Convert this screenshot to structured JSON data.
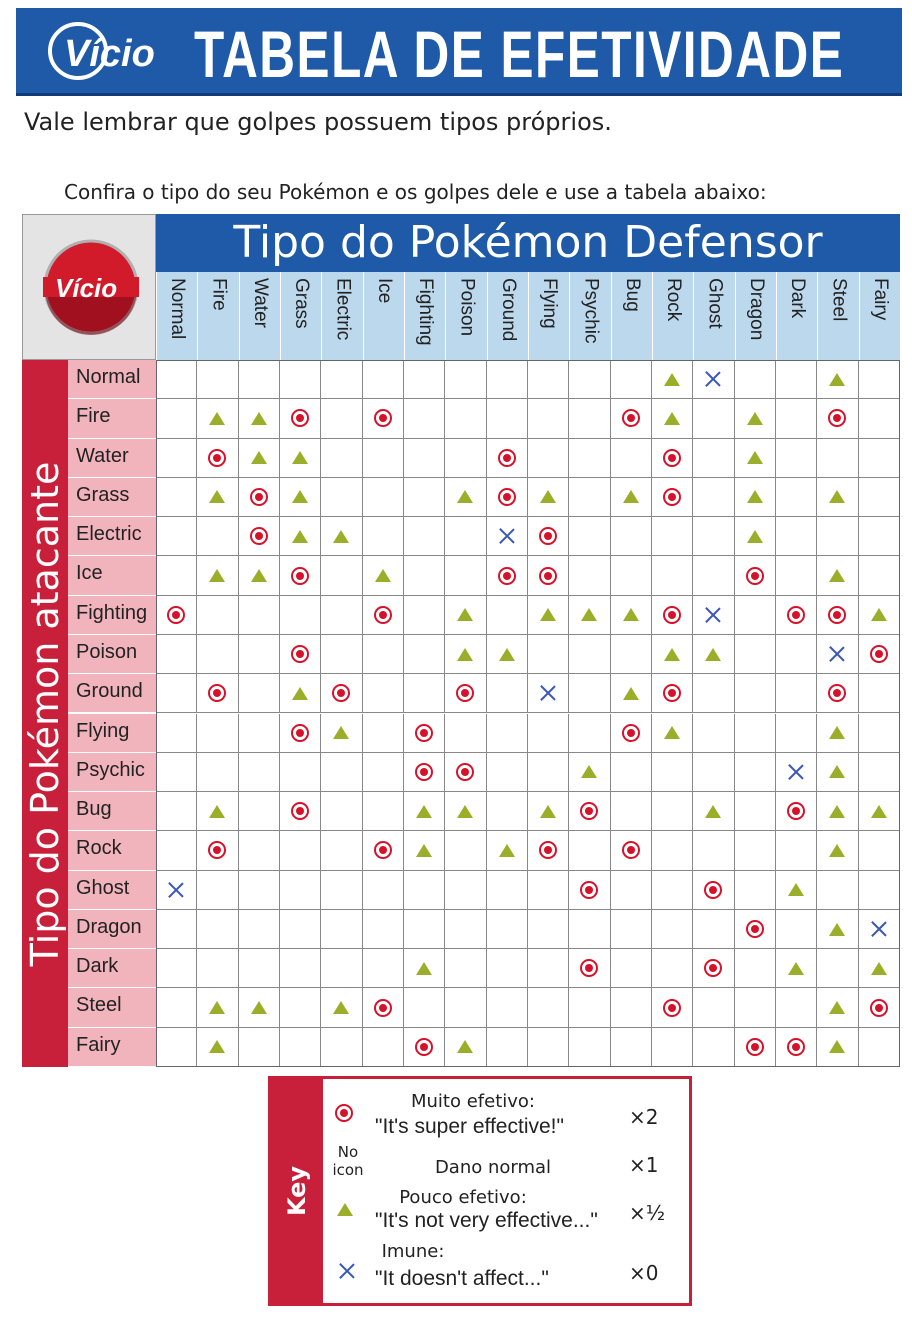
{
  "banner": {
    "logo_text": "Vício",
    "title": "TABELA DE EFETIVIDADE"
  },
  "intro": {
    "line1": "Vale lembrar que golpes possuem tipos próprios.",
    "line2": "Confira o tipo do seu Pokémon e os golpes dele e use a tabela abaixo:"
  },
  "table": {
    "defender_heading": "Tipo do Pokémon Defensor",
    "attacker_heading": "Tipo do Pokémon atacante",
    "types": [
      "Normal",
      "Fire",
      "Water",
      "Grass",
      "Electric",
      "Ice",
      "Fighting",
      "Poison",
      "Ground",
      "Flying",
      "Psychic",
      "Bug",
      "Rock",
      "Ghost",
      "Dragon",
      "Dark",
      "Steel",
      "Fairy"
    ],
    "matrix": [
      ".,.,.,.,.,.,.,.,.,.,.,.,h,x,.,.,h,.",
      ".,h,h,s,.,s,.,.,.,.,.,s,h,.,h,.,s,.",
      ".,s,h,h,.,.,.,.,s,.,.,.,s,.,h,.,.,.",
      ".,h,s,h,.,.,.,h,s,h,.,h,s,.,h,.,h,.",
      ".,.,s,h,h,.,.,.,x,s,.,.,.,.,h,.,.,.",
      ".,h,h,s,.,h,.,.,s,s,.,.,.,.,s,.,h,.",
      "s,.,.,.,.,s,.,h,.,h,h,h,s,x,.,s,s,h",
      ".,.,.,s,.,.,.,h,h,.,.,.,h,h,.,.,x,s",
      ".,s,.,h,s,.,.,s,.,x,.,h,s,.,.,.,s,.",
      ".,.,.,s,h,.,s,.,.,.,.,s,h,.,.,.,h,.",
      ".,.,.,.,.,.,s,s,.,.,h,.,.,.,.,x,h,.",
      ".,h,.,s,.,.,h,h,.,h,s,.,.,h,.,s,h,h",
      ".,s,.,.,.,s,h,.,h,s,.,s,.,.,.,.,h,.",
      "x,.,.,.,.,.,.,.,.,.,s,.,.,s,.,h,.,.",
      ".,.,.,.,.,.,.,.,.,.,.,.,.,.,s,.,h,x",
      ".,.,.,.,.,.,h,.,.,.,s,.,.,s,.,h,.,h",
      ".,h,h,.,h,s,.,.,.,.,.,.,s,.,.,.,h,s",
      ".,h,.,.,.,.,s,h,.,.,.,.,.,.,s,s,h,."
    ]
  },
  "key": {
    "tab_label": "Key",
    "super_effective": {
      "title": "Muito efetivo:",
      "quote": "\"It's super effective!\"",
      "mult": "×2"
    },
    "normal": {
      "no_icon": "No icon",
      "title": "Dano normal",
      "mult": "×1"
    },
    "not_very": {
      "title": "Pouco efetivo:",
      "quote": "\"It's not very effective...\"",
      "mult": "×½"
    },
    "immune": {
      "title": "Imune:",
      "quote": "\"It doesn't affect...\"",
      "mult": "×0"
    }
  },
  "colors": {
    "banner_blue": "#1e5aa8",
    "attacker_red": "#c8203a",
    "row_pink": "#f1b4bc",
    "col_blue": "#bcd8ec",
    "super_red": "#d8112a",
    "not_very_olive": "#9aae2a",
    "immune_blue": "#3b58b8"
  }
}
